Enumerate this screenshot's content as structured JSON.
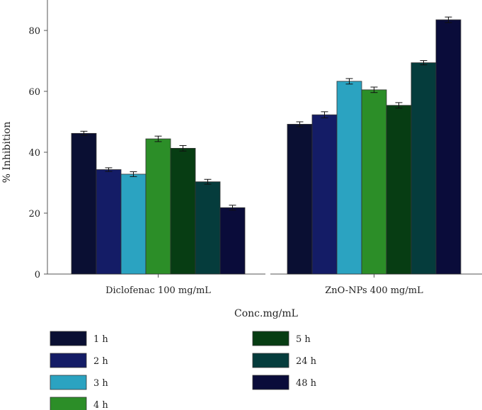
{
  "chart_data": {
    "type": "bar",
    "title": "",
    "xlabel": "Conc.mg/mL",
    "ylabel": "% Inhibition",
    "ylim": [
      0,
      90
    ],
    "yticks": [
      0,
      20,
      40,
      60,
      80
    ],
    "grid": false,
    "legend_position": "bottom",
    "categories": [
      "Diclofenac 100 mg/mL",
      "ZnO-NPs 400 mg/mL"
    ],
    "series": [
      {
        "name": "1 h",
        "color": "#0a0f33",
        "values": [
          46.2,
          49.2
        ],
        "errors": [
          0.7,
          0.8
        ]
      },
      {
        "name": "2 h",
        "color": "#141c66",
        "values": [
          34.3,
          52.3
        ],
        "errors": [
          0.6,
          1.0
        ]
      },
      {
        "name": "3 h",
        "color": "#2ba3c1",
        "values": [
          32.8,
          63.3
        ],
        "errors": [
          0.8,
          0.9
        ]
      },
      {
        "name": "4 h",
        "color": "#2c8e28",
        "values": [
          44.4,
          60.5
        ],
        "errors": [
          0.9,
          0.9
        ]
      },
      {
        "name": "5 h",
        "color": "#073d13",
        "values": [
          41.3,
          55.4
        ],
        "errors": [
          0.9,
          0.9
        ]
      },
      {
        "name": "24 h",
        "color": "#053c3c",
        "values": [
          30.3,
          69.4
        ],
        "errors": [
          0.8,
          0.7
        ]
      },
      {
        "name": "48 h",
        "color": "#0a0c3a",
        "values": [
          21.8,
          83.5
        ],
        "errors": [
          0.8,
          0.9
        ]
      }
    ]
  }
}
